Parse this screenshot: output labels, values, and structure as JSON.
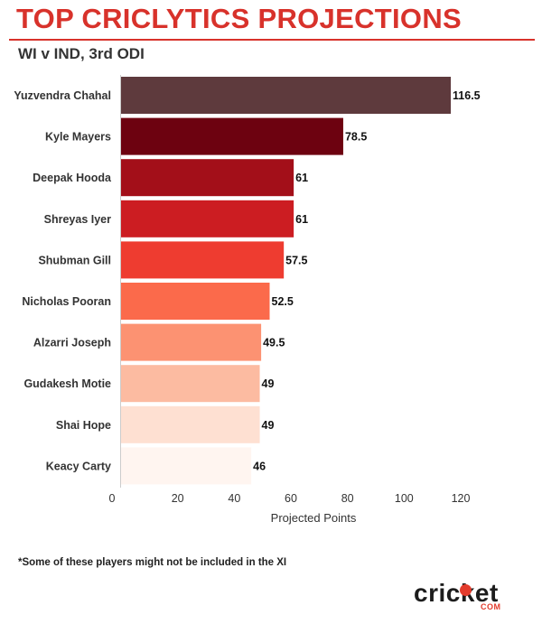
{
  "header": {
    "title": "TOP CRICLYTICS PROJECTIONS",
    "subtitle": "WI v IND, 3rd ODI"
  },
  "footnote": "*Some of these players might not be included in the XI",
  "logo": {
    "word": "cricket",
    "sub": "COM",
    "accent": "#e33b2c"
  },
  "chart_data": {
    "type": "bar",
    "orientation": "horizontal",
    "categories": [
      "Yuzvendra Chahal",
      "Kyle Mayers",
      "Deepak Hooda",
      "Shreyas Iyer",
      "Shubman Gill",
      "Nicholas Pooran",
      "Alzarri Joseph",
      "Gudakesh Motie",
      "Shai Hope",
      "Keacy Carty"
    ],
    "values": [
      116.5,
      78.5,
      61,
      61,
      57.5,
      52.5,
      49.5,
      49,
      49,
      46
    ],
    "value_labels": [
      "116.5",
      "78.5",
      "61",
      "61",
      "57.5",
      "52.5",
      "49.5",
      "49",
      "49",
      "46"
    ],
    "colors": [
      "#5e3a3d",
      "#6d0210",
      "#a30f19",
      "#cc1d22",
      "#ee3c30",
      "#fb6a4b",
      "#fc9272",
      "#fcbba1",
      "#fee0d2",
      "#fff5f0"
    ],
    "xlabel": "Projected Points",
    "xlim": [
      0,
      120
    ],
    "xticks": [
      "0",
      "20",
      "40",
      "60",
      "80",
      "100",
      "120"
    ],
    "grid": false,
    "legend": "none"
  }
}
